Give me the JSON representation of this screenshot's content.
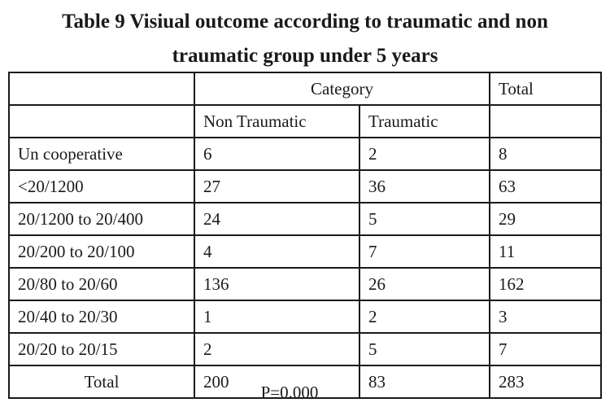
{
  "title_line1": "Table 9 Visiual  outcome according to traumatic and non",
  "title_line2": "traumatic group under 5 years",
  "header": {
    "category": "Category",
    "total": "Total",
    "non_traumatic": "Non Traumatic",
    "traumatic": "Traumatic"
  },
  "rows": [
    {
      "label": "Un cooperative",
      "non": "6",
      "tra": "2",
      "total": "8"
    },
    {
      "label": "<20/1200",
      "non": "27",
      "tra": "36",
      "total": "63"
    },
    {
      "label": "20/1200  to 20/400",
      "non": "24",
      "tra": "5",
      "total": "29"
    },
    {
      "label": "20/200 to 20/100",
      "non": "4",
      "tra": "7",
      "total": "11"
    },
    {
      "label": "20/80  to 20/60",
      "non": "136",
      "tra": "26",
      "total": "162"
    },
    {
      "label": "20/40 to 20/30",
      "non": "1",
      "tra": "2",
      "total": "3"
    },
    {
      "label": "20/20  to 20/15",
      "non": "2",
      "tra": "5",
      "total": "7"
    }
  ],
  "total_row": {
    "label": "Total",
    "non": "200",
    "tra": "83",
    "total": "283"
  },
  "footnote": "P=0.000"
}
